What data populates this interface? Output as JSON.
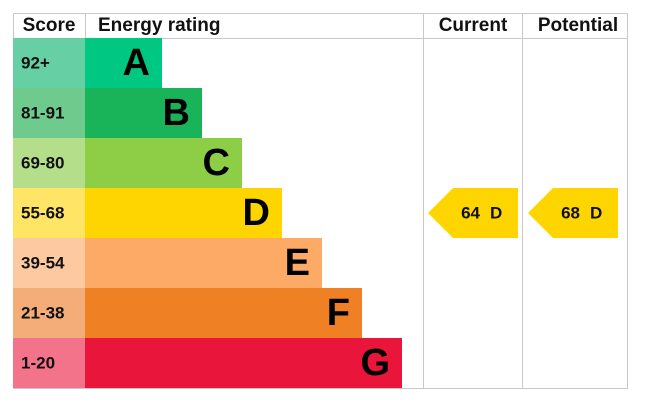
{
  "header": {
    "score": "Score",
    "energy_rating": "Energy rating",
    "current": "Current",
    "potential": "Potential"
  },
  "bands": [
    {
      "score": "92+",
      "letter": "A"
    },
    {
      "score": "81-91",
      "letter": "B"
    },
    {
      "score": "69-80",
      "letter": "C"
    },
    {
      "score": "55-68",
      "letter": "D"
    },
    {
      "score": "39-54",
      "letter": "E"
    },
    {
      "score": "21-38",
      "letter": "F"
    },
    {
      "score": "1-20",
      "letter": "G"
    }
  ],
  "current": {
    "value": 64,
    "letter": "D"
  },
  "potential": {
    "value": 68,
    "letter": "D"
  }
}
